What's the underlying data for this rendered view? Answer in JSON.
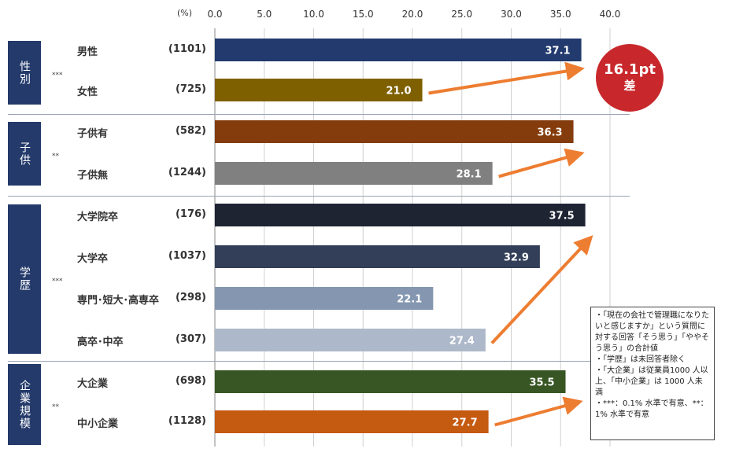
{
  "chart_data": {
    "type": "bar",
    "orientation": "horizontal",
    "unit_label": "(%)",
    "xlim": [
      0,
      40
    ],
    "ticks": [
      "0.0",
      "5.0",
      "10.0",
      "15.0",
      "20.0",
      "25.0",
      "30.0",
      "35.0",
      "40.0"
    ],
    "groups": [
      {
        "name": "性別",
        "sig": "***",
        "items": [
          {
            "label": "男性",
            "n": "(1101)",
            "value": 37.1,
            "value_label": "37.1",
            "color": "#223a6e"
          },
          {
            "label": "女性",
            "n": "(725)",
            "value": 21.0,
            "value_label": "21.0",
            "color": "#7f6000"
          }
        ]
      },
      {
        "name": "子供",
        "sig": "**",
        "items": [
          {
            "label": "子供有",
            "n": "(582)",
            "value": 36.3,
            "value_label": "36.3",
            "color": "#843c0c"
          },
          {
            "label": "子供無",
            "n": "(1244)",
            "value": 28.1,
            "value_label": "28.1",
            "color": "#808080"
          }
        ]
      },
      {
        "name": "学歴",
        "sig": "***",
        "items": [
          {
            "label": "大学院卒",
            "n": "(176)",
            "value": 37.5,
            "value_label": "37.5",
            "color": "#1f2433"
          },
          {
            "label": "大学卒",
            "n": "(1037)",
            "value": 32.9,
            "value_label": "32.9",
            "color": "#333f58"
          },
          {
            "label": "専門･短大･高専卒",
            "n": "(298)",
            "value": 22.1,
            "value_label": "22.1",
            "color": "#8496b0"
          },
          {
            "label": "高卒･中卒",
            "n": "(307)",
            "value": 27.4,
            "value_label": "27.4",
            "color": "#adb9ca"
          }
        ]
      },
      {
        "name": "企業規模",
        "sig": "**",
        "items": [
          {
            "label": "大企業",
            "n": "(698)",
            "value": 35.5,
            "value_label": "35.5",
            "color": "#375623"
          },
          {
            "label": "中小企業",
            "n": "(1128)",
            "value": 27.7,
            "value_label": "27.7",
            "color": "#c55a11"
          }
        ]
      }
    ],
    "annotation_badge": {
      "line1": "16.1pt",
      "line2": "差"
    },
    "arrow_color": "#ed7d31",
    "group_color": "#243a6b"
  },
  "note": {
    "lines": [
      "・「現在の会社で管理職になりたいと感じますか」という質問に対する回答「そう思う」「ややそう思う」の合計値",
      "・「学歴」は未回答者除く",
      "・「大企業」は従業員1000 人以上、「中小企業」は 1000 人未満",
      "・***：0.1% 水準で有意、**：1% 水準で有意"
    ]
  }
}
